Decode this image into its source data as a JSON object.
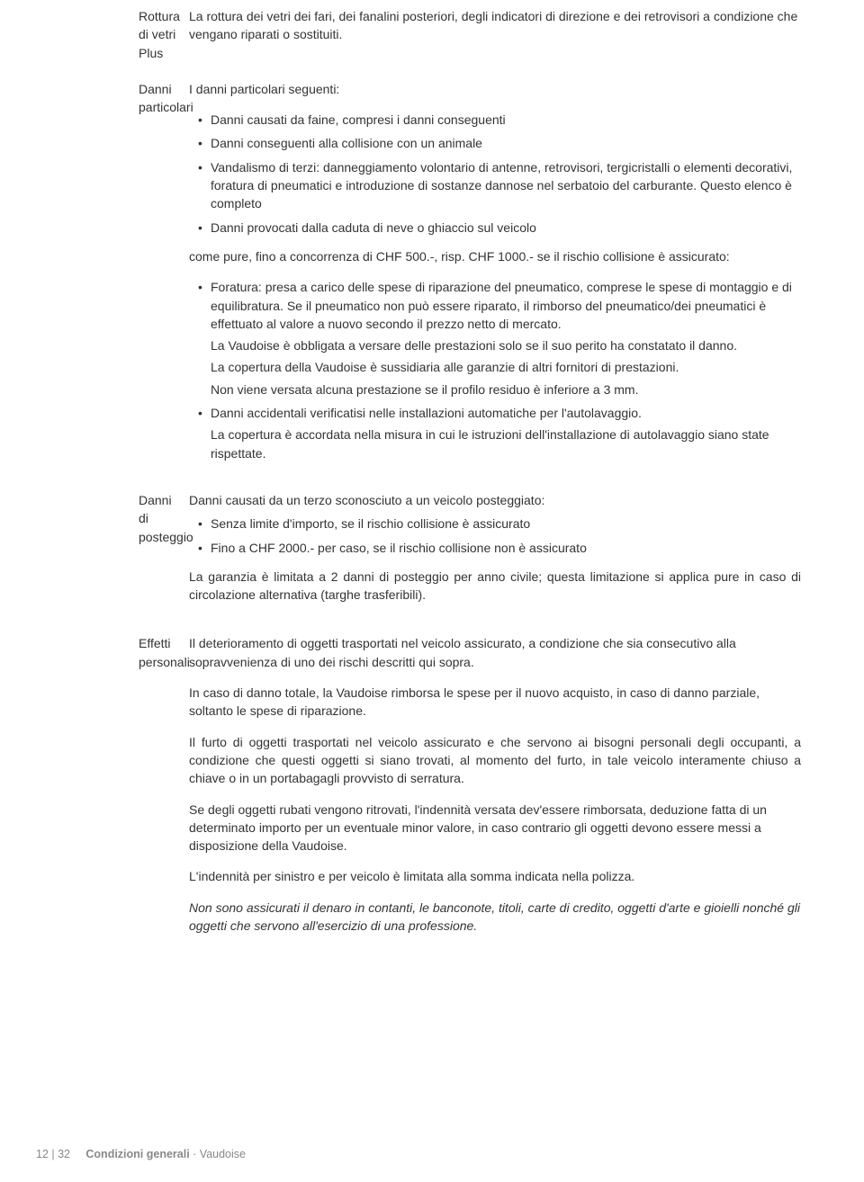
{
  "sections": {
    "rottura": {
      "label": "Rottura di vetri Plus",
      "text": "La rottura dei vetri dei fari, dei fanalini posteriori, degli indicatori di direzione e dei retrovisori a condizione che vengano riparati o sostituiti."
    },
    "danni_particolari": {
      "label": "Danni particolari",
      "intro": "I danni particolari seguenti:",
      "list1": [
        "Danni causati da faine, compresi i danni conseguenti",
        "Danni conseguenti alla collisione con un animale",
        "Vandalismo di terzi: danneggiamento volontario di antenne, retrovisori, tergicristalli o elementi decorativi, foratura di pneumatici e introduzione di sostanze dannose nel serbatoio del carburante. Questo elenco è completo",
        "Danni provocati dalla caduta di neve o ghiaccio sul veicolo"
      ],
      "mid": "come pure, fino a concorrenza di CHF 500.-, risp. CHF 1000.- se il rischio collisione è assicurato:",
      "list2_item1_main": "Foratura: presa a carico delle spese di riparazione del pneumatico, comprese le spese di montaggio e di equilibratura. Se il pneumatico non può essere riparato, il rimborso del pneumatico/dei pneumatici è effettuato al valore a nuovo secondo il prezzo netto di mercato.",
      "list2_item1_sub1": "La Vaudoise è obbligata a versare delle prestazioni solo se il suo perito ha constatato il danno.",
      "list2_item1_sub2": "La copertura della Vaudoise è sussidiaria alle garanzie di altri fornitori di prestazioni.",
      "list2_item1_sub3": "Non viene versata alcuna prestazione se il profilo residuo è inferiore a 3 mm.",
      "list2_item2_main": "Danni accidentali verificatisi nelle installazioni automatiche per l'autolavaggio.",
      "list2_item2_sub1": "La copertura è accordata nella misura in cui le istruzioni dell'installazione di autolavaggio siano state rispettate."
    },
    "posteggio": {
      "label": "Danni di posteggio",
      "intro": "Danni causati da un terzo sconosciuto a un veicolo posteggiato:",
      "list": [
        "Senza limite d'importo, se il rischio collisione è assicurato",
        "Fino a CHF 2000.- per caso, se il rischio collisione non è assicurato"
      ],
      "outro": "La garanzia è limitata a 2 danni di posteggio per anno civile; questa limitazione si applica pure in caso di circolazione alternativa (targhe trasferibili)."
    },
    "effetti": {
      "label": "Effetti personali",
      "p1": "Il deterioramento di oggetti trasportati nel veicolo assicurato, a condizione che sia consecutivo alla sopravvenienza di uno dei rischi descritti qui sopra.",
      "p2": "In caso di danno totale, la Vaudoise rimborsa le spese per il nuovo acquisto, in caso di danno parziale, soltanto le spese di riparazione.",
      "p3": "Il furto di oggetti trasportati nel veicolo assicurato e che servono ai bisogni personali degli occupanti, a condizione che questi oggetti si siano trovati, al momento del furto, in tale veicolo interamente chiuso a chiave o in un portabagagli provvisto di serratura.",
      "p4": "Se degli oggetti rubati vengono ritrovati, l'indennità versata dev'essere rimborsata, deduzione fatta di un determinato importo per un eventuale minor valore, in caso contrario gli oggetti devono essere messi a disposizione della Vaudoise.",
      "p5": "L'indennità per sinistro e per veicolo è limitata alla somma indicata nella polizza.",
      "p6": "Non sono assicurati il denaro in contanti, le banconote, titoli, carte di credito, oggetti d'arte e gioielli nonché gli oggetti che servono all'esercizio di una professione."
    }
  },
  "footer": {
    "page": "12 | 32",
    "title": "Condizioni generali",
    "sep": " · ",
    "brand": "Vaudoise"
  }
}
